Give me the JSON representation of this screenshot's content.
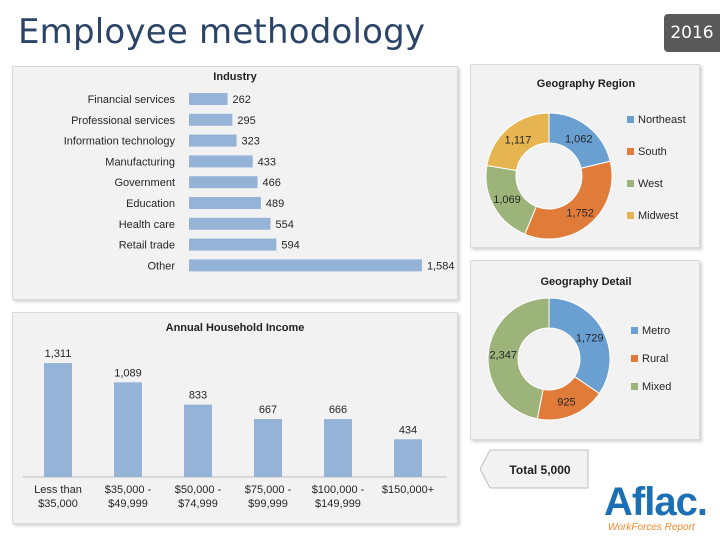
{
  "title": "Employee methodology",
  "year": "2016",
  "total_label": "Total 5,000",
  "logo": {
    "word": "Aflac.",
    "subtitle": "WorkForces Report"
  },
  "colors": {
    "bar": "#95b3d7",
    "northeast": "#6a9fd2",
    "south": "#e07b39",
    "west": "#9cb47a",
    "midwest": "#e6b551",
    "metro": "#6a9fd2",
    "rural": "#e07b39",
    "mixed": "#9cb47a"
  },
  "chart_data": [
    {
      "type": "bar",
      "orientation": "horizontal",
      "title": "Industry",
      "categories": [
        "Financial services",
        "Professional services",
        "Information technology",
        "Manufacturing",
        "Government",
        "Education",
        "Health care",
        "Retail trade",
        "Other"
      ],
      "values": [
        262,
        295,
        323,
        433,
        466,
        489,
        554,
        594,
        1584
      ],
      "value_labels": [
        "262",
        "295",
        "323",
        "433",
        "466",
        "489",
        "554",
        "594",
        "1,584"
      ],
      "xlim": [
        0,
        1700
      ]
    },
    {
      "type": "bar",
      "title": "Annual Household Income",
      "categories": [
        [
          "Less than",
          "$35,000"
        ],
        [
          "$35,000 -",
          "$49,999"
        ],
        [
          "$50,000 -",
          "$74,999"
        ],
        [
          "$75,000 -",
          "$99,999"
        ],
        [
          "$100,000 -",
          "$149,999"
        ],
        [
          "$150,000+",
          ""
        ]
      ],
      "values": [
        1311,
        1089,
        833,
        667,
        666,
        434
      ],
      "value_labels": [
        "1,311",
        "1,089",
        "833",
        "667",
        "666",
        "434"
      ],
      "ylim": [
        0,
        1450
      ]
    },
    {
      "type": "pie",
      "title": "Geography Region",
      "labels": [
        "Northeast",
        "South",
        "West",
        "Midwest"
      ],
      "values": [
        1062,
        1752,
        1069,
        1117
      ],
      "value_labels": [
        "1,062",
        "1,752",
        "1,069",
        "1,117"
      ],
      "legend": "right"
    },
    {
      "type": "pie",
      "title": "Geography Detail",
      "labels": [
        "Metro",
        "Rural",
        "Mixed"
      ],
      "values": [
        1729,
        925,
        2347
      ],
      "value_labels": [
        "1,729",
        "925",
        "2,347"
      ],
      "legend": "right"
    }
  ]
}
